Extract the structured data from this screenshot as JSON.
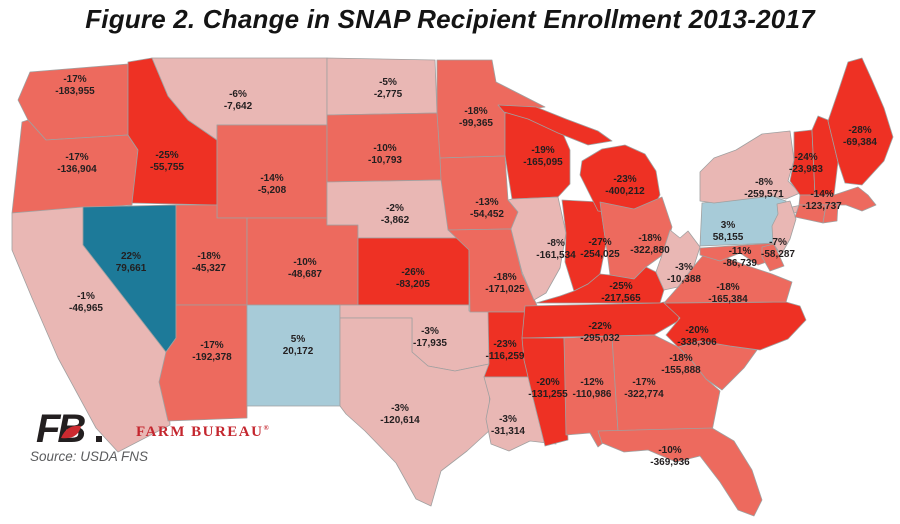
{
  "title": "Figure 2. Change in SNAP Recipient Enrollment 2013-2017",
  "logo": {
    "mark": "FB",
    "dot": ".",
    "brand": "FARM BUREAU",
    "registered": "®"
  },
  "source": "Source: USDA FNS",
  "map": {
    "border_color": "#a0a0a0",
    "label_color": "#231f20",
    "colors": {
      "increase_large": "#1d7a99",
      "increase_small": "#a7cbd8",
      "decrease_small": "#e9b7b4",
      "decrease_medium": "#ed6a5e",
      "decrease_large": "#ee3124"
    },
    "states": [
      {
        "id": "WA",
        "name": "Washington",
        "pct": "-17%",
        "count": "-183,955",
        "tier": "decrease_medium"
      },
      {
        "id": "OR",
        "name": "Oregon",
        "pct": "-17%",
        "count": "-136,904",
        "tier": "decrease_medium"
      },
      {
        "id": "CA",
        "name": "California",
        "pct": "-1%",
        "count": "-46,965",
        "tier": "decrease_small"
      },
      {
        "id": "NV",
        "name": "Nevada",
        "pct": "22%",
        "count": "79,661",
        "tier": "increase_large"
      },
      {
        "id": "ID",
        "name": "Idaho",
        "pct": "-25%",
        "count": "-55,755",
        "tier": "decrease_large"
      },
      {
        "id": "MT",
        "name": "Montana",
        "pct": "-6%",
        "count": "-7,642",
        "tier": "decrease_small"
      },
      {
        "id": "WY",
        "name": "Wyoming",
        "pct": "-14%",
        "count": "-5,208",
        "tier": "decrease_medium"
      },
      {
        "id": "UT",
        "name": "Utah",
        "pct": "-18%",
        "count": "-45,327",
        "tier": "decrease_medium"
      },
      {
        "id": "CO",
        "name": "Colorado",
        "pct": "-10%",
        "count": "-48,687",
        "tier": "decrease_medium"
      },
      {
        "id": "AZ",
        "name": "Arizona",
        "pct": "-17%",
        "count": "-192,378",
        "tier": "decrease_medium"
      },
      {
        "id": "NM",
        "name": "New Mexico",
        "pct": "5%",
        "count": "20,172",
        "tier": "increase_small"
      },
      {
        "id": "ND",
        "name": "North Dakota",
        "pct": "-5%",
        "count": "-2,775",
        "tier": "decrease_small"
      },
      {
        "id": "SD",
        "name": "South Dakota",
        "pct": "-10%",
        "count": "-10,793",
        "tier": "decrease_medium"
      },
      {
        "id": "NE",
        "name": "Nebraska",
        "pct": "-2%",
        "count": "-3,862",
        "tier": "decrease_small"
      },
      {
        "id": "KS",
        "name": "Kansas",
        "pct": "-26%",
        "count": "-83,205",
        "tier": "decrease_large"
      },
      {
        "id": "OK",
        "name": "Oklahoma",
        "pct": "-3%",
        "count": "-17,935",
        "tier": "decrease_small"
      },
      {
        "id": "TX",
        "name": "Texas",
        "pct": "-3%",
        "count": "-120,614",
        "tier": "decrease_small"
      },
      {
        "id": "MN",
        "name": "Minnesota",
        "pct": "-18%",
        "count": "-99,365",
        "tier": "decrease_medium"
      },
      {
        "id": "IA",
        "name": "Iowa",
        "pct": "-13%",
        "count": "-54,452",
        "tier": "decrease_medium"
      },
      {
        "id": "MO",
        "name": "Missouri",
        "pct": "-18%",
        "count": "-171,025",
        "tier": "decrease_medium"
      },
      {
        "id": "AR",
        "name": "Arkansas",
        "pct": "-23%",
        "count": "-116,259",
        "tier": "decrease_large"
      },
      {
        "id": "LA",
        "name": "Louisiana",
        "pct": "-3%",
        "count": "-31,314",
        "tier": "decrease_small"
      },
      {
        "id": "WI",
        "name": "Wisconsin",
        "pct": "-19%",
        "count": "-165,095",
        "tier": "decrease_large"
      },
      {
        "id": "IL",
        "name": "Illinois",
        "pct": "-8%",
        "count": "-161,534",
        "tier": "decrease_small"
      },
      {
        "id": "IN",
        "name": "Indiana",
        "pct": "-27%",
        "count": "-254,025",
        "tier": "decrease_large"
      },
      {
        "id": "MI",
        "name": "Michigan",
        "pct": "-23%",
        "count": "-400,212",
        "tier": "decrease_large"
      },
      {
        "id": "OH",
        "name": "Ohio",
        "pct": "-18%",
        "count": "-322,880",
        "tier": "decrease_medium"
      },
      {
        "id": "KY",
        "name": "Kentucky",
        "pct": "-25%",
        "count": "-217,565",
        "tier": "decrease_large"
      },
      {
        "id": "TN",
        "name": "Tennessee",
        "pct": "-22%",
        "count": "-295,032",
        "tier": "decrease_large"
      },
      {
        "id": "MS",
        "name": "Mississippi",
        "pct": "-20%",
        "count": "-131,255",
        "tier": "decrease_large"
      },
      {
        "id": "AL",
        "name": "Alabama",
        "pct": "-12%",
        "count": "-110,986",
        "tier": "decrease_medium"
      },
      {
        "id": "GA",
        "name": "Georgia",
        "pct": "-17%",
        "count": "-322,774",
        "tier": "decrease_medium"
      },
      {
        "id": "FL",
        "name": "Florida",
        "pct": "-10%",
        "count": "-369,936",
        "tier": "decrease_medium"
      },
      {
        "id": "SC",
        "name": "South Carolina",
        "pct": "-18%",
        "count": "-155,888",
        "tier": "decrease_medium"
      },
      {
        "id": "NC",
        "name": "North Carolina",
        "pct": "-20%",
        "count": "-338,306",
        "tier": "decrease_large"
      },
      {
        "id": "VA",
        "name": "Virginia",
        "pct": "-18%",
        "count": "-165,384",
        "tier": "decrease_medium"
      },
      {
        "id": "WV",
        "name": "West Virginia",
        "pct": "-3%",
        "count": "-10,388",
        "tier": "decrease_small"
      },
      {
        "id": "MD",
        "name": "Maryland",
        "pct": "-11%",
        "count": "-86,739",
        "tier": "decrease_medium"
      },
      {
        "id": "DE",
        "name": "Delaware",
        "tier": "decrease_medium"
      },
      {
        "id": "PA",
        "name": "Pennsylvania",
        "pct": "3%",
        "count": "58,155",
        "tier": "increase_small"
      },
      {
        "id": "NJ",
        "name": "New Jersey",
        "pct": "-7%",
        "count": "-58,287",
        "tier": "decrease_small"
      },
      {
        "id": "NY",
        "name": "New York",
        "pct": "-8%",
        "count": "-259,571",
        "tier": "decrease_small"
      },
      {
        "id": "VT",
        "name": "Vermont",
        "pct": "-24%",
        "count": "-23,983",
        "tier": "decrease_large"
      },
      {
        "id": "NH",
        "name": "New Hampshire",
        "tier": "decrease_large"
      },
      {
        "id": "MA",
        "name": "Massachusetts",
        "pct": "-14%",
        "count": "-123,737",
        "tier": "decrease_medium"
      },
      {
        "id": "CT",
        "name": "Connecticut",
        "tier": "decrease_medium"
      },
      {
        "id": "RI",
        "name": "Rhode Island",
        "tier": "decrease_medium"
      },
      {
        "id": "ME",
        "name": "Maine",
        "pct": "-28%",
        "count": "-69,384",
        "tier": "decrease_large"
      }
    ]
  }
}
